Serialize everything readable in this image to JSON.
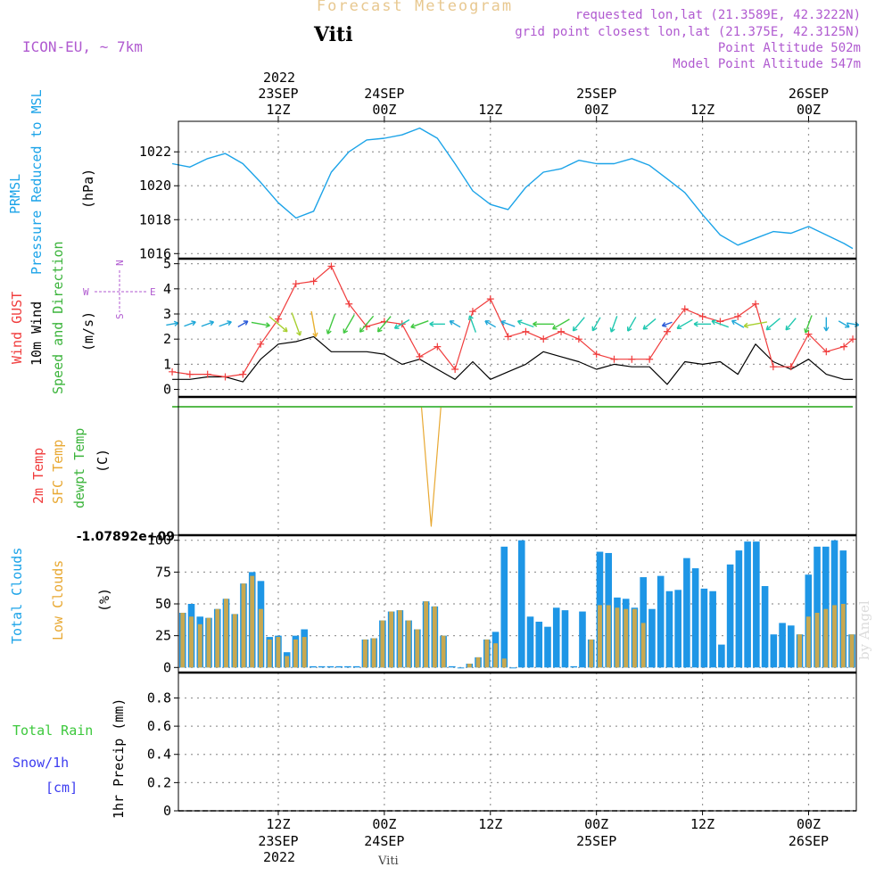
{
  "title": "Forecast Meteogram",
  "station": "Viti",
  "model": "ICON-EU, ~ 7km",
  "requested": "requested lon,lat (21.3589E, 42.3222N)",
  "gridpoint": "grid point closest lon,lat (21.375E, 42.3125N)",
  "point_altitude": "Point Altitude 502m",
  "model_altitude": "Model Point Altitude 547m",
  "signature": "by Angel",
  "footer": "Viti",
  "time_axis": {
    "top_year": "2022",
    "labels": [
      {
        "hour": 12,
        "day": "23SEP",
        "time": "12Z"
      },
      {
        "hour": 24,
        "day": "24SEP",
        "time": "00Z"
      },
      {
        "hour": 36,
        "day": "",
        "time": "12Z"
      },
      {
        "hour": 48,
        "day": "25SEP",
        "time": "00Z"
      },
      {
        "hour": 60,
        "day": "",
        "time": "12Z"
      },
      {
        "hour": 72,
        "day": "26SEP",
        "time": "00Z"
      }
    ],
    "range_hours": [
      0.7,
      77.4
    ]
  },
  "panel_labels": {
    "pressure": [
      "PRMSL",
      "Pressure Reduced to MSL",
      "(hPa)"
    ],
    "wind": [
      "Wind GUST",
      "10m Wind",
      "Speed and Direction",
      "(m/s)"
    ],
    "compass": [
      "N",
      "S",
      "W",
      "E"
    ],
    "temp": [
      "2m Temp",
      "SFC Temp",
      "dewpt Temp",
      "(C)"
    ],
    "temp_tick": "-1.07892e+09",
    "clouds": [
      "Total Clouds",
      "Low Clouds",
      "(%)"
    ],
    "precip_left": [
      "Total  Rain",
      "Snow/1h",
      "[cm]"
    ],
    "precip_axis": "1hr Precip (mm)"
  },
  "colors": {
    "pressure": "#1ba3e8",
    "gust": "#f03c3c",
    "wind": "#000000",
    "sfc": "#e8a832",
    "dewpt": "#3cb43c",
    "total_clouds": "#1e96e6",
    "low_clouds": "#c8a850",
    "purple": "#b05ad0",
    "rain": "#3cc83c",
    "snow": "#3c3cf0"
  },
  "chart_data": [
    {
      "type": "line",
      "name": "pressure",
      "x": [
        0,
        2,
        4,
        6,
        8,
        10,
        12,
        14,
        16,
        18,
        20,
        22,
        24,
        26,
        28,
        30,
        32,
        34,
        36,
        38,
        40,
        42,
        44,
        46,
        48,
        50,
        52,
        54,
        56,
        58,
        60,
        62,
        64,
        66,
        68,
        70,
        72,
        74,
        76,
        77
      ],
      "values": [
        1021.3,
        1021.1,
        1021.6,
        1021.9,
        1021.3,
        1020.2,
        1019.0,
        1018.1,
        1018.5,
        1020.8,
        1022.0,
        1022.7,
        1022.8,
        1023.0,
        1023.4,
        1022.8,
        1021.3,
        1019.7,
        1018.9,
        1018.6,
        1019.9,
        1020.8,
        1021.0,
        1021.5,
        1021.3,
        1021.3,
        1021.6,
        1021.2,
        1020.4,
        1019.6,
        1018.3,
        1017.1,
        1016.5,
        1016.9,
        1017.3,
        1017.2,
        1017.6,
        1017.1,
        1016.6,
        1016.3
      ],
      "ylabel": "(hPa)",
      "yticks": [
        1016,
        1018,
        1020,
        1022
      ],
      "ylim": [
        1015.7,
        1023.8
      ]
    },
    {
      "type": "line",
      "name": "wind",
      "x": [
        0,
        2,
        4,
        6,
        8,
        10,
        12,
        14,
        16,
        18,
        20,
        22,
        24,
        26,
        28,
        30,
        32,
        34,
        36,
        38,
        40,
        42,
        44,
        46,
        48,
        50,
        52,
        54,
        56,
        58,
        60,
        62,
        64,
        66,
        68,
        70,
        72,
        74,
        76,
        77
      ],
      "gust": [
        0.7,
        0.6,
        0.6,
        0.5,
        0.6,
        1.8,
        2.8,
        4.2,
        4.3,
        4.9,
        3.4,
        2.5,
        2.7,
        2.6,
        1.3,
        1.7,
        0.8,
        3.1,
        3.6,
        2.1,
        2.3,
        2.0,
        2.3,
        2.0,
        1.4,
        1.2,
        1.2,
        1.2,
        2.3,
        3.2,
        2.9,
        2.7,
        2.9,
        3.4,
        0.9,
        0.9,
        2.2,
        1.5,
        1.7,
        2.0
      ],
      "wind": [
        0.4,
        0.4,
        0.5,
        0.5,
        0.3,
        1.2,
        1.8,
        1.9,
        2.1,
        1.5,
        1.5,
        1.5,
        1.4,
        1.0,
        1.2,
        0.8,
        0.4,
        1.1,
        0.4,
        0.7,
        1.0,
        1.5,
        1.3,
        1.1,
        0.8,
        1.0,
        0.9,
        0.9,
        0.2,
        1.1,
        1.0,
        1.1,
        0.6,
        1.8,
        1.1,
        0.8,
        1.2,
        0.6,
        0.4,
        0.4
      ],
      "direction_deg": [
        80,
        70,
        70,
        70,
        60,
        100,
        130,
        160,
        170,
        200,
        210,
        220,
        220,
        240,
        250,
        270,
        300,
        340,
        300,
        290,
        290,
        270,
        240,
        220,
        210,
        200,
        210,
        230,
        250,
        240,
        270,
        290,
        300,
        260,
        230,
        220,
        200,
        180,
        120,
        100
      ],
      "ylabel": "(m/s)",
      "yticks": [
        0,
        1,
        2,
        3,
        4,
        5
      ],
      "ylim": [
        -0.3,
        5.2
      ]
    },
    {
      "type": "line",
      "name": "temperature",
      "x": [
        0,
        28.2,
        29.3,
        30.4,
        77
      ],
      "sfc": [
        1,
        1,
        0,
        1,
        1
      ],
      "dewpt": [
        1,
        1,
        1,
        1,
        1
      ],
      "ylabel": "(C)",
      "yticks_text": [
        "-1.07892e+09"
      ]
    },
    {
      "type": "bar",
      "name": "clouds",
      "x": [
        0,
        1,
        2,
        3,
        4,
        5,
        6,
        7,
        8,
        9,
        10,
        11,
        12,
        13,
        14,
        15,
        16,
        17,
        18,
        19,
        20,
        21,
        22,
        23,
        24,
        25,
        26,
        27,
        28,
        29,
        30,
        31,
        32,
        33,
        34,
        35,
        36,
        37,
        38,
        39,
        40,
        41,
        42,
        43,
        44,
        45,
        46,
        47,
        48,
        49,
        50,
        51,
        52,
        53,
        54,
        55,
        56,
        57,
        58,
        59,
        60,
        61,
        62,
        63,
        64,
        65,
        66,
        67,
        68,
        69,
        70,
        71,
        72,
        73,
        74,
        75,
        76,
        77
      ],
      "total": [
        43,
        50,
        40,
        39,
        46,
        54,
        42,
        66,
        75,
        68,
        24,
        25,
        12,
        25,
        30,
        1,
        1,
        1,
        1,
        1,
        1,
        22,
        23,
        37,
        44,
        45,
        37,
        30,
        52,
        48,
        25,
        1,
        0,
        3,
        8,
        22,
        28,
        95,
        0,
        100,
        40,
        36,
        32,
        47,
        45,
        1,
        44,
        22,
        91,
        90,
        55,
        54,
        47,
        71,
        46,
        72,
        60,
        61,
        86,
        78,
        62,
        60,
        18,
        81,
        92,
        99,
        99,
        64,
        26,
        35,
        33,
        26,
        73,
        95,
        95,
        100,
        92,
        26
      ],
      "low": [
        43,
        40,
        34,
        39,
        46,
        54,
        42,
        66,
        72,
        46,
        22,
        24,
        9,
        22,
        24,
        0,
        0,
        0,
        0,
        0,
        0,
        22,
        23,
        37,
        44,
        45,
        37,
        30,
        52,
        48,
        25,
        0,
        0,
        3,
        8,
        22,
        19,
        7,
        0,
        0,
        0,
        0,
        0,
        0,
        0,
        0,
        0,
        22,
        49,
        49,
        47,
        46,
        46,
        35,
        0,
        0,
        0,
        0,
        0,
        0,
        0,
        0,
        0,
        0,
        0,
        0,
        0,
        0,
        0,
        0,
        0,
        26,
        40,
        43,
        46,
        49,
        50,
        26
      ],
      "ylabel": "(%)",
      "yticks": [
        0,
        25,
        50,
        75,
        100
      ],
      "ylim": [
        -4,
        104
      ]
    },
    {
      "type": "line",
      "name": "precip",
      "x": [
        0,
        77
      ],
      "values": [
        0,
        0
      ],
      "ylabel": "1hr Precip (mm)",
      "yticks": [
        0,
        0.2,
        0.4,
        0.6,
        0.8
      ],
      "ylim": [
        0,
        0.98
      ]
    }
  ]
}
